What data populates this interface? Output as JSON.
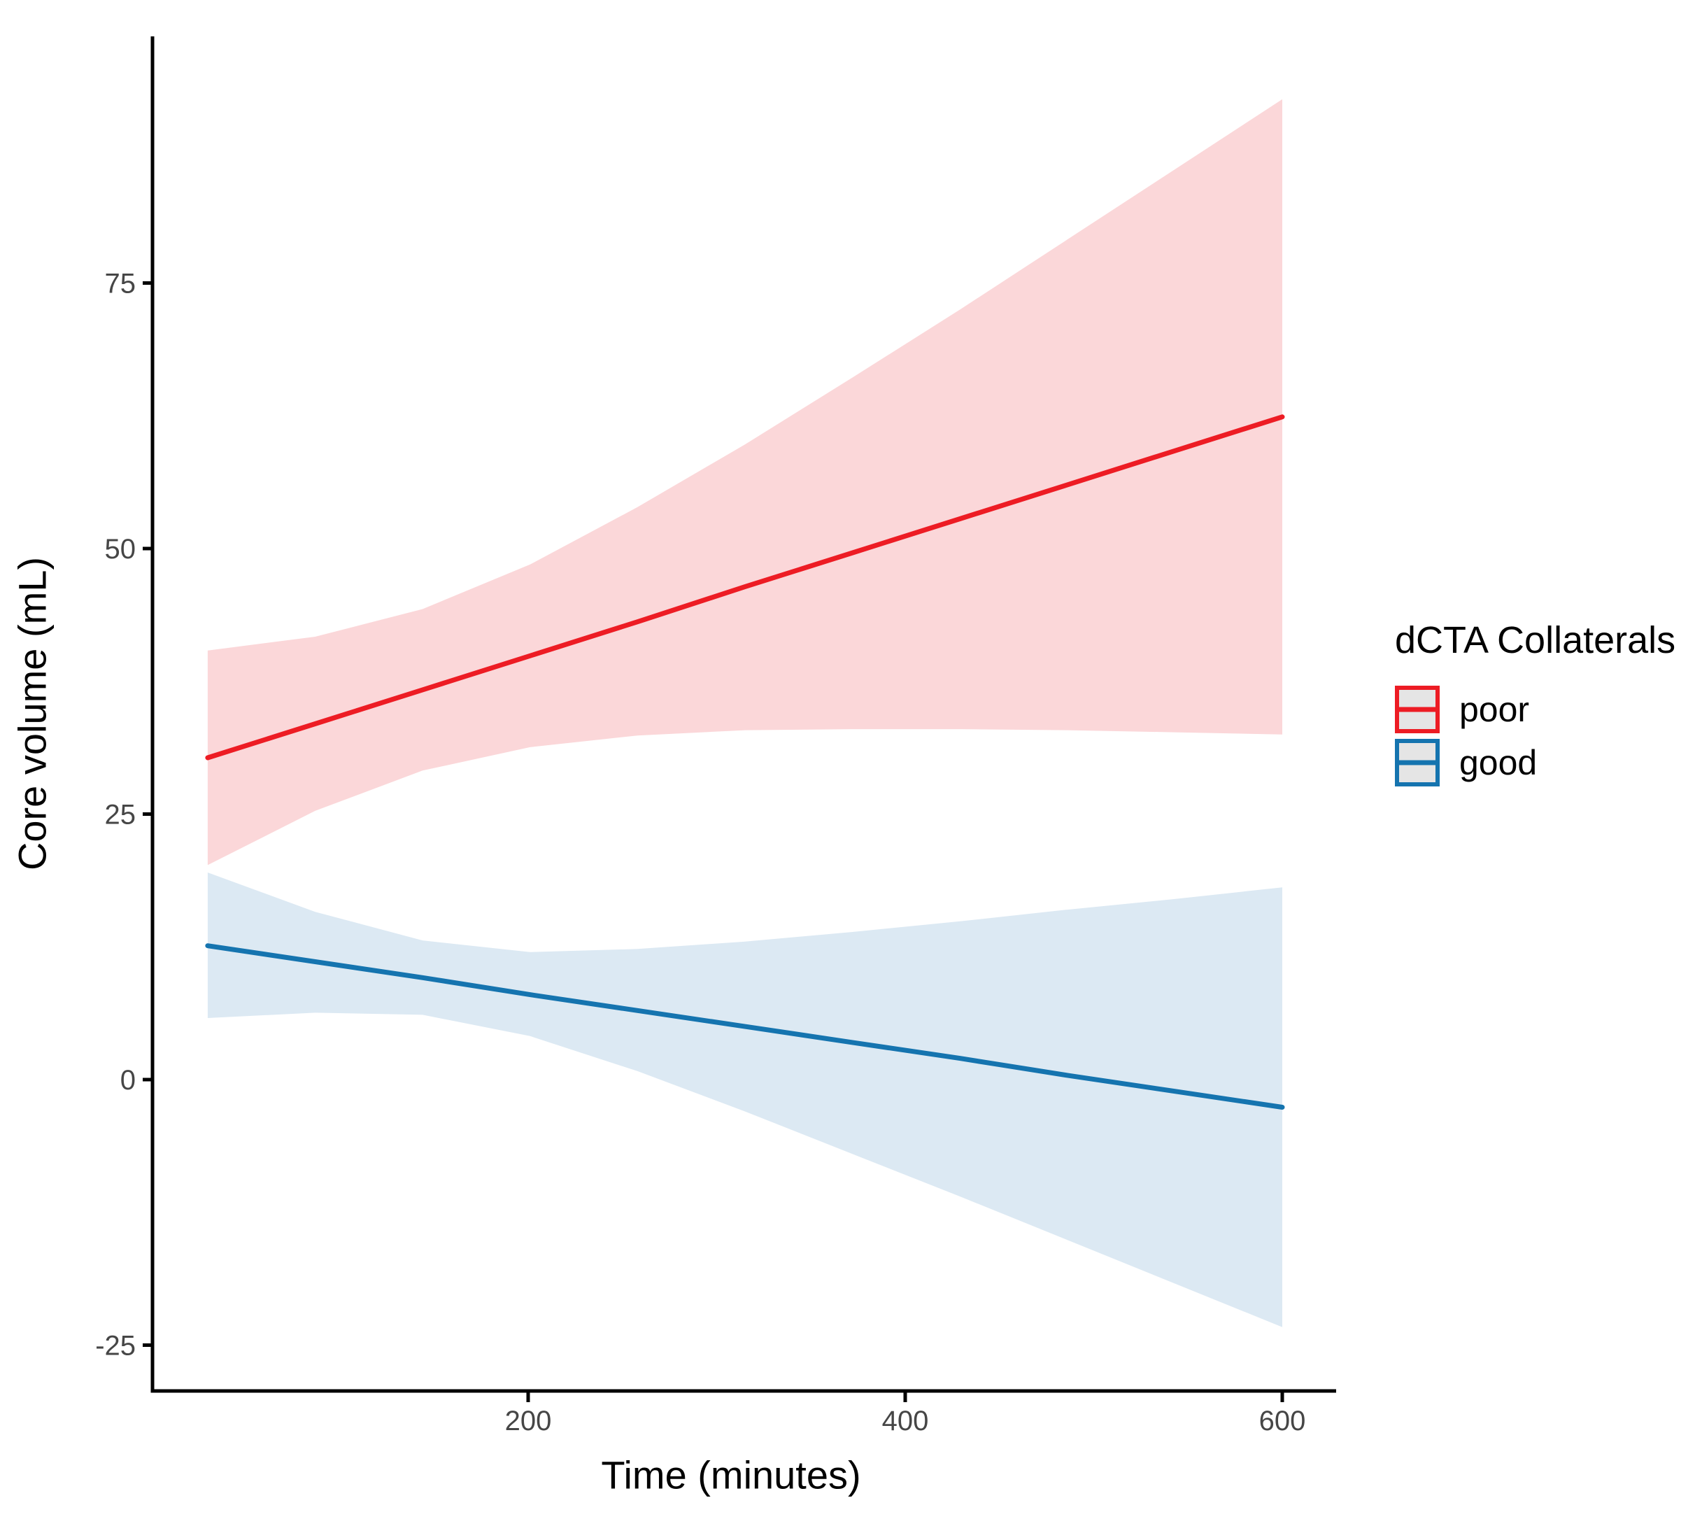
{
  "chart_data": {
    "type": "line",
    "title": "",
    "xlabel": "Time (minutes)",
    "ylabel": "Core volume (mL)",
    "x": [
      30,
      87,
      144,
      201,
      258,
      315,
      372,
      429,
      486,
      543,
      600
    ],
    "series": [
      {
        "name": "poor",
        "color": "#ED1C24",
        "ribbon_color": "#FBD7D9",
        "values": [
          30.3,
          33.5,
          36.7,
          39.9,
          43.1,
          46.4,
          49.6,
          52.8,
          56.0,
          59.2,
          62.4
        ],
        "upper": [
          40.4,
          41.7,
          44.3,
          48.5,
          53.9,
          59.8,
          66.1,
          72.5,
          79.1,
          85.7,
          92.3
        ],
        "lower": [
          20.2,
          25.3,
          29.1,
          31.3,
          32.4,
          32.9,
          33.0,
          33.0,
          32.9,
          32.7,
          32.5
        ]
      },
      {
        "name": "good",
        "color": "#1574AF",
        "ribbon_color": "#DCE9F3",
        "values": [
          12.6,
          11.1,
          9.6,
          8.0,
          6.5,
          5.0,
          3.5,
          2.0,
          0.4,
          -1.1,
          -2.6
        ],
        "upper": [
          19.5,
          15.8,
          13.1,
          12.0,
          12.3,
          13.0,
          13.9,
          14.9,
          16.0,
          17.0,
          18.1
        ],
        "lower": [
          5.8,
          6.3,
          6.1,
          4.1,
          0.8,
          -3.0,
          -7.0,
          -11.0,
          -15.1,
          -19.2,
          -23.3
        ]
      }
    ],
    "x_ticks": [
      200,
      400,
      600
    ],
    "y_ticks": [
      -25,
      0,
      25,
      50,
      75
    ],
    "xlim": [
      0,
      628
    ],
    "ylim": [
      -29.3,
      98.2
    ],
    "grid": false,
    "legend": {
      "title": "dCTA Collaterals",
      "position": "right",
      "key_fill": "#E5E5E5"
    },
    "axis_color": "#000000",
    "tick_label_color": "#464646"
  }
}
